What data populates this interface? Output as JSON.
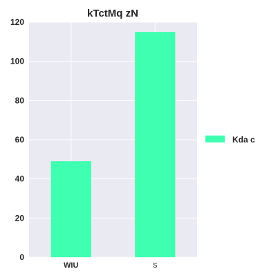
{
  "chart_data": {
    "type": "bar",
    "title": "kTctMq zN",
    "xlabel": "",
    "ylabel": "",
    "categories": [
      "WIU",
      "S"
    ],
    "series": [
      {
        "name": "Kda c",
        "values": [
          49,
          115
        ]
      }
    ],
    "ylim": [
      0,
      120
    ],
    "yticks": [
      0,
      20,
      40,
      60,
      80,
      100,
      120
    ],
    "grid": true,
    "legend_position": "right",
    "colors": {
      "bar": "#3fffb0",
      "plot_background": "#eaeaf2",
      "grid": "#ffffff"
    }
  }
}
